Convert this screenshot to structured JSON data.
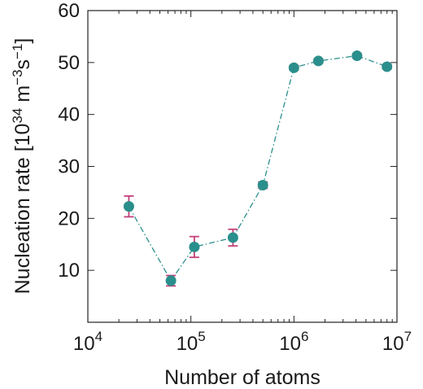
{
  "chart_data": {
    "type": "scatter",
    "title": "",
    "xlabel": "Number of atoms",
    "ylabel": {
      "base": "Nucleation rate [10",
      "exp1": "34",
      "mid": " m",
      "exp2": "−3",
      "mid2": "s",
      "exp3": "−1",
      "end": "]"
    },
    "xscale": "log",
    "xlim": [
      10000,
      10000000
    ],
    "ylim": [
      0,
      60
    ],
    "xticks": [
      {
        "value": 10000,
        "base": "10",
        "exp": "4"
      },
      {
        "value": 100000,
        "base": "10",
        "exp": "5"
      },
      {
        "value": 1000000,
        "base": "10",
        "exp": "6"
      },
      {
        "value": 10000000,
        "base": "10",
        "exp": "7"
      }
    ],
    "yticks": [
      {
        "value": 10,
        "label": "10"
      },
      {
        "value": 20,
        "label": "20"
      },
      {
        "value": 30,
        "label": "30"
      },
      {
        "value": 40,
        "label": "40"
      },
      {
        "value": 50,
        "label": "50"
      },
      {
        "value": 60,
        "label": "60"
      }
    ],
    "grid": false,
    "legend": "none",
    "series": [
      {
        "marker_color": "#2a8f8c",
        "line_style": "dash-dot",
        "errorbar_color": "#c2417a",
        "points": [
          {
            "x": 25000,
            "y": 22.3,
            "err": 2.0
          },
          {
            "x": 64000,
            "y": 8.0,
            "err": 1.0
          },
          {
            "x": 108000,
            "y": 14.5,
            "err": 2.0
          },
          {
            "x": 256000,
            "y": 16.3,
            "err": 1.6
          },
          {
            "x": 500000,
            "y": 26.4,
            "err": 0.6
          },
          {
            "x": 1000000,
            "y": 49.0,
            "err": 0.4
          },
          {
            "x": 1728000,
            "y": 50.3,
            "err": 0.4
          },
          {
            "x": 4096000,
            "y": 51.3,
            "err": 0.4
          },
          {
            "x": 8000000,
            "y": 49.2,
            "err": 0.4
          }
        ]
      }
    ]
  }
}
